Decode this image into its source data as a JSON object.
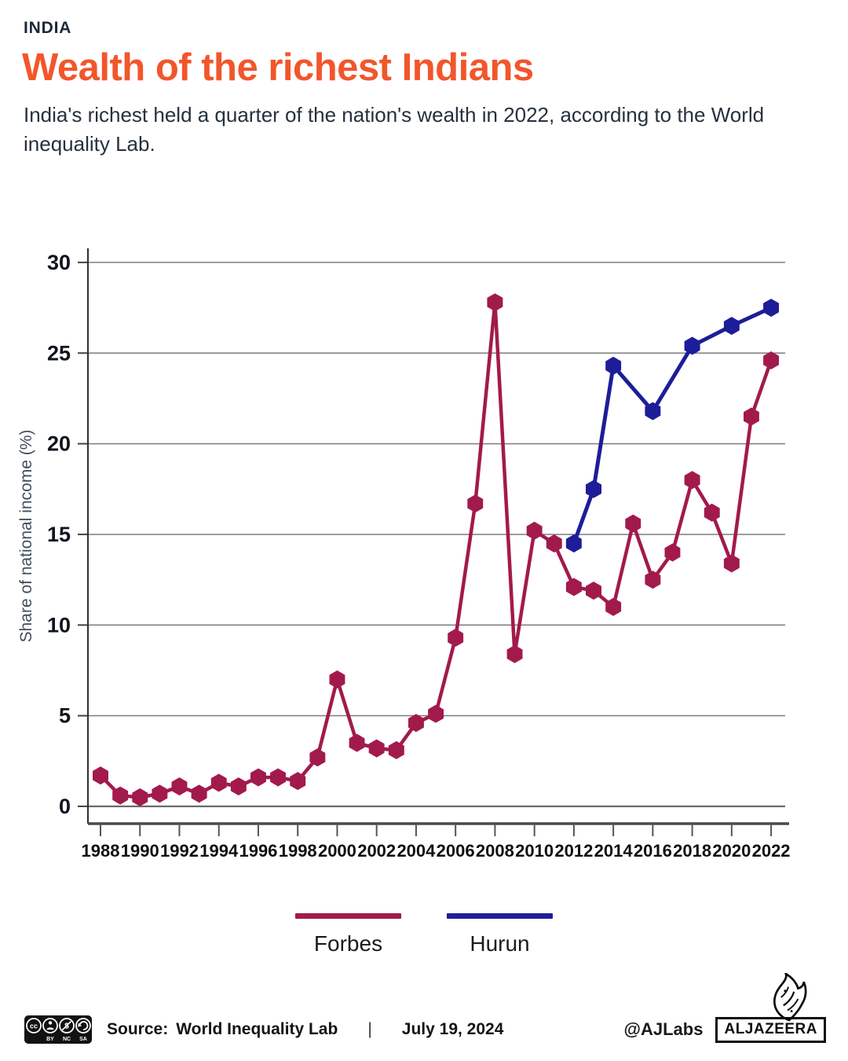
{
  "header": {
    "kicker": "INDIA",
    "title": "Wealth of the richest Indians",
    "subtitle": "India's richest held a quarter of the nation's wealth in 2022, according to the World inequality Lab."
  },
  "chart_data": {
    "type": "line",
    "title": "Wealth of the richest Indians",
    "xlabel": "",
    "ylabel": "Share of national income (%)",
    "ylim": [
      0,
      30
    ],
    "y_ticks": [
      0,
      5,
      10,
      15,
      20,
      25,
      30
    ],
    "x_ticks": [
      1988,
      1990,
      1992,
      1994,
      1996,
      1998,
      2000,
      2002,
      2004,
      2006,
      2008,
      2010,
      2012,
      2014,
      2016,
      2018,
      2020,
      2022
    ],
    "grid": true,
    "legend_position": "bottom",
    "marker": "hexagon",
    "series": [
      {
        "name": "Forbes",
        "color": "#a21a4b",
        "x": [
          1988,
          1989,
          1990,
          1991,
          1992,
          1993,
          1994,
          1995,
          1996,
          1997,
          1998,
          1999,
          2000,
          2001,
          2002,
          2003,
          2004,
          2005,
          2006,
          2007,
          2008,
          2009,
          2010,
          2011,
          2012,
          2013,
          2014,
          2015,
          2016,
          2017,
          2018,
          2019,
          2020,
          2021,
          2022
        ],
        "y": [
          1.7,
          0.6,
          0.5,
          0.7,
          1.1,
          0.7,
          1.3,
          1.1,
          1.6,
          1.6,
          1.4,
          2.7,
          7.0,
          3.5,
          3.2,
          3.1,
          4.6,
          5.1,
          9.3,
          16.7,
          27.8,
          8.4,
          15.2,
          14.5,
          12.1,
          11.9,
          11.0,
          15.6,
          12.5,
          14.0,
          18.0,
          16.2,
          13.4,
          21.5,
          24.6
        ]
      },
      {
        "name": "Hurun",
        "color": "#1d1d99",
        "x": [
          2012,
          2013,
          2014,
          2016,
          2018,
          2020,
          2022
        ],
        "y": [
          14.5,
          17.5,
          24.3,
          21.8,
          25.4,
          26.5,
          27.5
        ]
      }
    ]
  },
  "legend": {
    "items": [
      {
        "label": "Forbes",
        "color": "#a21a4b"
      },
      {
        "label": "Hurun",
        "color": "#1d1d99"
      }
    ]
  },
  "footer": {
    "license": "CC",
    "license_labels": [
      "BY",
      "NC",
      "SA"
    ],
    "source_label": "Source:",
    "source_value": "World Inequality Lab",
    "separator": "|",
    "date": "July 19, 2024",
    "credit": "@AJLabs",
    "brand": "ALJAZEERA"
  }
}
